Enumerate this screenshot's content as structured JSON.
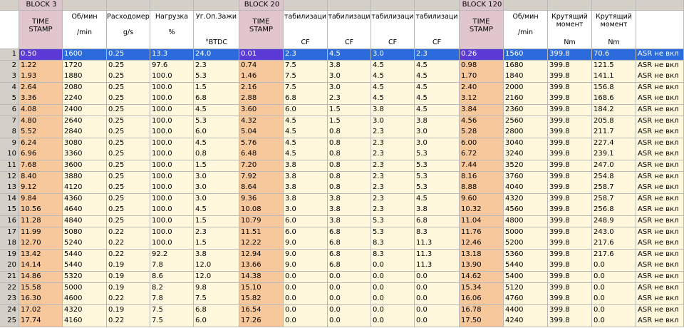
{
  "blocks": [
    "BLOCK 3",
    "BLOCK 20",
    "BLOCK 120"
  ],
  "header": [
    {
      "label": "TIME STAMP"
    },
    {
      "label": "Об/мин",
      "unit": "/min"
    },
    {
      "label": "Расходомер",
      "unit": "g/s"
    },
    {
      "label": "Нагрузка",
      "unit": "%"
    },
    {
      "label": "Уг.Оп.Зажи",
      "unit": "°BTDC"
    },
    {
      "label": "TIME STAMP"
    },
    {
      "label": "табилизаци",
      "unit": "CF"
    },
    {
      "label": "табилизаци",
      "unit": "CF"
    },
    {
      "label": "табилизаци",
      "unit": "CF"
    },
    {
      "label": "табилизаци",
      "unit": "CF"
    },
    {
      "label": "TIME STAMP"
    },
    {
      "label": "Об/мин",
      "unit": "/min"
    },
    {
      "label": "Крутящий момент",
      "unit": "Nm"
    },
    {
      "label": "Крутящий момент",
      "unit": "Nm"
    }
  ],
  "rows": [
    [
      "1",
      "0.50",
      "1600",
      "0.25",
      "13.3",
      "24.0",
      "0.01",
      "2.3",
      "4.5",
      "3.0",
      "2.3",
      "0.26",
      "1560",
      "399.8",
      "70.6",
      "ASR не вкл"
    ],
    [
      "2",
      "1.22",
      "1720",
      "0.25",
      "97.6",
      "2.3",
      "0.74",
      "7.5",
      "3.8",
      "4.5",
      "4.5",
      "0.98",
      "1680",
      "399.8",
      "121.5",
      "ASR не вкл"
    ],
    [
      "3",
      "1.93",
      "1880",
      "0.25",
      "100.0",
      "5.3",
      "1.46",
      "7.5",
      "3.0",
      "4.5",
      "4.5",
      "1.70",
      "1840",
      "399.8",
      "141.1",
      "ASR не вкл"
    ],
    [
      "4",
      "2.64",
      "2080",
      "0.25",
      "100.0",
      "1.5",
      "2.16",
      "7.5",
      "3.0",
      "4.5",
      "4.5",
      "2.40",
      "2000",
      "399.8",
      "156.8",
      "ASR не вкл"
    ],
    [
      "5",
      "3.36",
      "2240",
      "0.25",
      "100.0",
      "6.8",
      "2.88",
      "6.8",
      "2.3",
      "4.5",
      "4.5",
      "3.12",
      "2160",
      "399.8",
      "168.6",
      "ASR не вкл"
    ],
    [
      "6",
      "4.08",
      "2400",
      "0.25",
      "100.0",
      "4.5",
      "3.60",
      "6.0",
      "1.5",
      "3.8",
      "4.5",
      "3.84",
      "2360",
      "399.8",
      "184.2",
      "ASR не вкл"
    ],
    [
      "7",
      "4.80",
      "2640",
      "0.25",
      "100.0",
      "5.3",
      "4.32",
      "4.5",
      "1.5",
      "3.0",
      "3.8",
      "4.56",
      "2560",
      "399.8",
      "205.8",
      "ASR не вкл"
    ],
    [
      "8",
      "5.52",
      "2840",
      "0.25",
      "100.0",
      "6.0",
      "5.04",
      "4.5",
      "0.8",
      "2.3",
      "3.0",
      "5.28",
      "2800",
      "399.8",
      "211.7",
      "ASR не вкл"
    ],
    [
      "9",
      "6.24",
      "3080",
      "0.25",
      "100.0",
      "4.5",
      "5.76",
      "4.5",
      "0.8",
      "2.3",
      "3.0",
      "6.00",
      "3040",
      "399.8",
      "227.4",
      "ASR не вкл"
    ],
    [
      "10",
      "6.96",
      "3360",
      "0.25",
      "100.0",
      "0.8",
      "6.48",
      "4.5",
      "0.8",
      "2.3",
      "5.3",
      "6.72",
      "3240",
      "399.8",
      "239.1",
      "ASR не вкл"
    ],
    [
      "11",
      "7.68",
      "3600",
      "0.25",
      "100.0",
      "1.5",
      "7.20",
      "3.8",
      "0.8",
      "2.3",
      "5.3",
      "7.44",
      "3520",
      "399.8",
      "247.0",
      "ASR не вкл"
    ],
    [
      "12",
      "8.40",
      "3880",
      "0.25",
      "100.0",
      "3.0",
      "7.92",
      "3.8",
      "0.8",
      "2.3",
      "5.3",
      "8.16",
      "3760",
      "399.8",
      "254.8",
      "ASR не вкл"
    ],
    [
      "13",
      "9.12",
      "4120",
      "0.25",
      "100.0",
      "3.0",
      "8.64",
      "3.8",
      "0.8",
      "2.3",
      "5.3",
      "8.88",
      "4040",
      "399.8",
      "258.7",
      "ASR не вкл"
    ],
    [
      "14",
      "9.84",
      "4360",
      "0.25",
      "100.0",
      "3.0",
      "9.36",
      "3.8",
      "3.8",
      "2.3",
      "4.5",
      "9.60",
      "4320",
      "399.8",
      "258.7",
      "ASR не вкл"
    ],
    [
      "15",
      "10.56",
      "4640",
      "0.25",
      "100.0",
      "4.5",
      "10.08",
      "3.0",
      "3.8",
      "2.3",
      "3.8",
      "10.32",
      "4560",
      "399.8",
      "256.8",
      "ASR не вкл"
    ],
    [
      "16",
      "11.28",
      "4840",
      "0.25",
      "100.0",
      "1.5",
      "10.79",
      "6.0",
      "3.8",
      "5.3",
      "6.8",
      "11.04",
      "4800",
      "399.8",
      "248.9",
      "ASR не вкл"
    ],
    [
      "17",
      "11.99",
      "5080",
      "0.22",
      "100.0",
      "2.3",
      "11.51",
      "6.0",
      "6.8",
      "5.3",
      "8.3",
      "11.76",
      "5000",
      "399.8",
      "243.0",
      "ASR не вкл"
    ],
    [
      "18",
      "12.70",
      "5240",
      "0.22",
      "100.0",
      "1.5",
      "12.22",
      "9.0",
      "6.8",
      "8.3",
      "11.3",
      "12.46",
      "5200",
      "399.8",
      "217.6",
      "ASR не вкл"
    ],
    [
      "19",
      "13.42",
      "5440",
      "0.22",
      "92.2",
      "3.8",
      "12.94",
      "9.0",
      "6.8",
      "8.3",
      "11.3",
      "13.18",
      "5360",
      "399.8",
      "217.6",
      "ASR не вкл"
    ],
    [
      "20",
      "14.14",
      "5440",
      "0.19",
      "7.8",
      "12.0",
      "13.66",
      "9.0",
      "6.8",
      "0.0",
      "11.3",
      "13.90",
      "5440",
      "399.8",
      "0.0",
      "ASR не вкл"
    ],
    [
      "21",
      "14.86",
      "5320",
      "0.19",
      "8.6",
      "12.0",
      "14.38",
      "0.0",
      "0.0",
      "0.0",
      "0.0",
      "14.62",
      "5400",
      "399.8",
      "0.0",
      "ASR не вкл"
    ],
    [
      "22",
      "15.58",
      "5000",
      "0.19",
      "8.2",
      "9.8",
      "15.10",
      "0.0",
      "0.0",
      "0.0",
      "0.0",
      "15.34",
      "5120",
      "399.8",
      "0.0",
      "ASR не вкл"
    ],
    [
      "23",
      "16.30",
      "4600",
      "0.22",
      "7.8",
      "7.5",
      "15.82",
      "0.0",
      "0.0",
      "0.0",
      "0.0",
      "16.06",
      "4760",
      "399.8",
      "0.0",
      "ASR не вкл"
    ],
    [
      "24",
      "17.02",
      "4320",
      "0.19",
      "7.5",
      "6.8",
      "16.54",
      "0.0",
      "0.0",
      "0.0",
      "0.0",
      "16.78",
      "4400",
      "399.8",
      "0.0",
      "ASR не вкл"
    ],
    [
      "25",
      "17.74",
      "4160",
      "0.22",
      "7.5",
      "6.0",
      "17.26",
      "0.0",
      "0.0",
      "0.0",
      "0.0",
      "17.50",
      "4240",
      "399.8",
      "0.0",
      "ASR не вкл"
    ]
  ]
}
